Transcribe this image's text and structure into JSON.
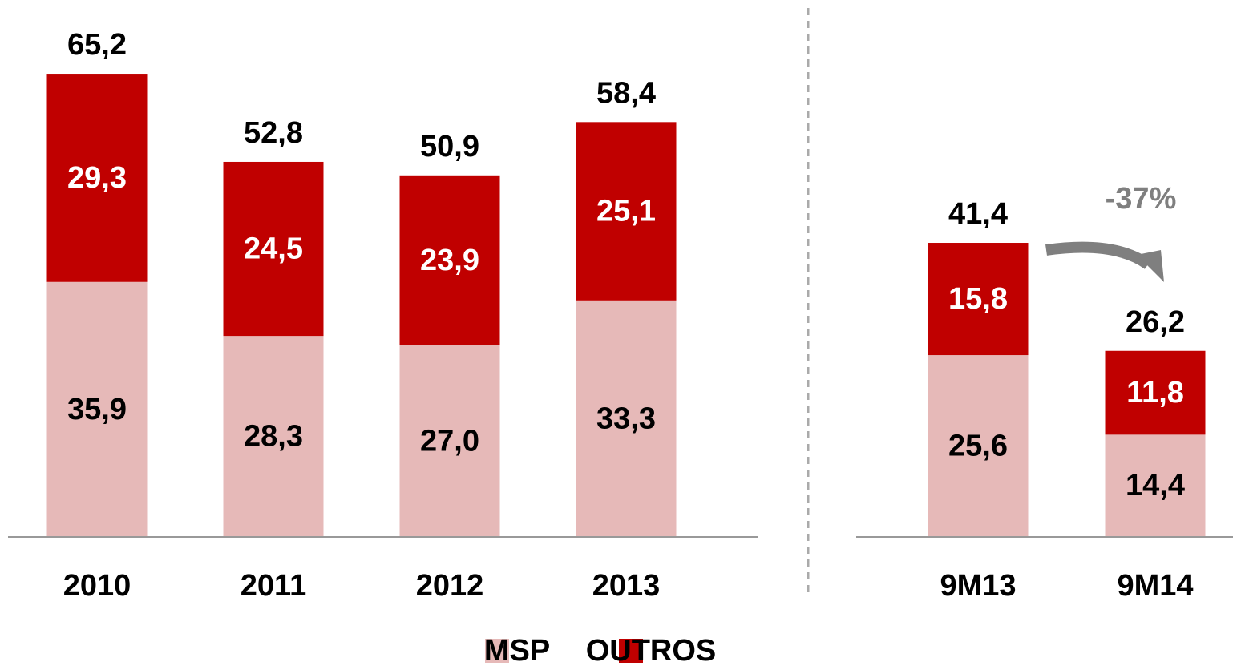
{
  "chart_data": [
    {
      "type": "stacked_bar",
      "categories": [
        "2010",
        "2011",
        "2012",
        "2013"
      ],
      "series": [
        {
          "name": "MSP",
          "color": "#e6b9b8",
          "values": [
            35.9,
            28.3,
            27.0,
            33.3
          ],
          "value_labels": [
            "35,9",
            "28,3",
            "27,0",
            "33,3"
          ]
        },
        {
          "name": "OUTROS",
          "color": "#c00000",
          "values": [
            29.3,
            24.5,
            23.9,
            25.1
          ],
          "value_labels": [
            "29,3",
            "24,5",
            "23,9",
            "25,1"
          ]
        }
      ],
      "totals": [
        65.2,
        52.8,
        50.9,
        58.4
      ],
      "total_labels": [
        "65,2",
        "52,8",
        "50,9",
        "58,4"
      ],
      "ylim": [
        0,
        70
      ]
    },
    {
      "type": "stacked_bar",
      "categories": [
        "9M13",
        "9M14"
      ],
      "series": [
        {
          "color": "#e6b9b8",
          "values": [
            25.6,
            14.4
          ],
          "value_labels": [
            "25,6",
            "14,4"
          ]
        },
        {
          "color": "#c00000",
          "values": [
            15.8,
            11.8
          ],
          "value_labels": [
            "15,8",
            "11,8"
          ]
        }
      ],
      "totals": [
        41.4,
        26.2
      ],
      "total_labels": [
        "41,4",
        "26,2"
      ],
      "annotation": "-37%",
      "ylim": [
        0,
        70
      ]
    }
  ]
}
